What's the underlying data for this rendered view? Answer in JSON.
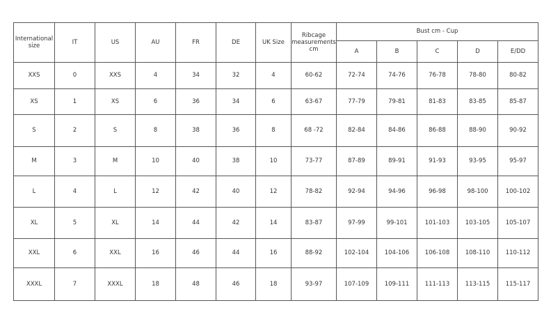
{
  "table": {
    "headers": [
      "International size",
      "IT",
      "US",
      "AU",
      "FR",
      "DE",
      "UK Size",
      "Ribcage measurements cm"
    ],
    "group_header": "Bust cm - Cup",
    "cup_headers": [
      "A",
      "B",
      "C",
      "D",
      "E/DD"
    ],
    "rows": [
      [
        "XXS",
        "0",
        "XXS",
        "4",
        "34",
        "32",
        "4",
        "60-62",
        "72-74",
        "74-76",
        "76-78",
        "78-80",
        "80-82"
      ],
      [
        "XS",
        "1",
        "XS",
        "6",
        "36",
        "34",
        "6",
        "63-67",
        "77-79",
        "79-81",
        "81-83",
        "83-85",
        "85-87"
      ],
      [
        "S",
        "2",
        "S",
        "8",
        "38",
        "36",
        "8",
        "68 -72",
        "82-84",
        "84-86",
        "86-88",
        "88-90",
        "90-92"
      ],
      [
        "M",
        "3",
        "M",
        "10",
        "40",
        "38",
        "10",
        "73-77",
        "87-89",
        "89-91",
        "91-93",
        "93-95",
        "95-97"
      ],
      [
        "L",
        "4",
        "L",
        "12",
        "42",
        "40",
        "12",
        "78-82",
        "92-94",
        "94-96",
        "96-98",
        "98-100",
        "100-102"
      ],
      [
        "XL",
        "5",
        "XL",
        "14",
        "44",
        "42",
        "14",
        "83-87",
        "97-99",
        "99-101",
        "101-103",
        "103-105",
        "105-107"
      ],
      [
        "XXL",
        "6",
        "XXL",
        "16",
        "46",
        "44",
        "16",
        "88-92",
        "102-104",
        "104-106",
        "106-108",
        "108-110",
        "110-112"
      ],
      [
        "XXXL",
        "7",
        "XXXL",
        "18",
        "48",
        "46",
        "18",
        "93-97",
        "107-109",
        "109-111",
        "111-113",
        "113-115",
        "115-117"
      ]
    ]
  }
}
